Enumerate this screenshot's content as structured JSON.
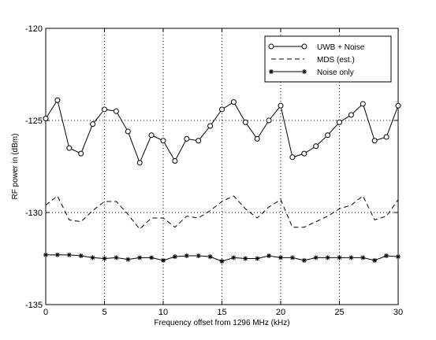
{
  "chart_data": {
    "type": "line",
    "title": "",
    "xlabel": "Frequency offset from 1296 MHz (kHz)",
    "ylabel": "RF power in (dBm)",
    "xlim": [
      0,
      30
    ],
    "ylim": [
      -135,
      -120
    ],
    "xticks": [
      0,
      5,
      10,
      15,
      20,
      25,
      30
    ],
    "yticks": [
      -135,
      -130,
      -125,
      -120
    ],
    "xtick_labels": [
      "0",
      "5",
      "10",
      "15",
      "20",
      "25",
      "30"
    ],
    "ytick_labels": [
      "-135",
      "-130",
      "-125",
      "-120"
    ],
    "grid": true,
    "legend_position": "top-right",
    "x": [
      0,
      1,
      2,
      3,
      4,
      5,
      6,
      7,
      8,
      9,
      10,
      11,
      12,
      13,
      14,
      15,
      16,
      17,
      18,
      19,
      20,
      21,
      22,
      23,
      24,
      25,
      26,
      27,
      28,
      29,
      30
    ],
    "series": [
      {
        "name": "UWB + Noise",
        "style": "solid",
        "marker": "circle",
        "values": [
          -124.9,
          -123.9,
          -126.5,
          -126.8,
          -125.2,
          -124.4,
          -124.5,
          -125.6,
          -127.3,
          -125.8,
          -126.1,
          -127.2,
          -126.0,
          -126.1,
          -125.3,
          -124.4,
          -124.0,
          -125.1,
          -126.0,
          -125.0,
          -124.2,
          -127.0,
          -126.8,
          -126.4,
          -125.8,
          -125.1,
          -124.7,
          -124.1,
          -126.1,
          -125.9,
          -124.2
        ]
      },
      {
        "name": "MDS (est.)",
        "style": "dashed",
        "marker": "none",
        "values": [
          -129.6,
          -129.1,
          -130.4,
          -130.5,
          -129.9,
          -129.4,
          -129.4,
          -130.1,
          -130.9,
          -130.3,
          -130.3,
          -130.8,
          -130.2,
          -130.3,
          -129.9,
          -129.4,
          -129.1,
          -129.8,
          -130.3,
          -129.7,
          -129.3,
          -130.8,
          -130.8,
          -130.5,
          -130.2,
          -129.8,
          -129.6,
          -129.1,
          -130.4,
          -130.2,
          -129.3
        ]
      },
      {
        "name": "Noise only",
        "style": "solid",
        "marker": "star",
        "values": [
          -132.3,
          -132.3,
          -132.3,
          -132.35,
          -132.45,
          -132.5,
          -132.45,
          -132.55,
          -132.45,
          -132.45,
          -132.6,
          -132.4,
          -132.35,
          -132.35,
          -132.4,
          -132.65,
          -132.45,
          -132.5,
          -132.5,
          -132.35,
          -132.45,
          -132.45,
          -132.6,
          -132.45,
          -132.45,
          -132.45,
          -132.45,
          -132.45,
          -132.6,
          -132.35,
          -132.4
        ]
      }
    ]
  }
}
